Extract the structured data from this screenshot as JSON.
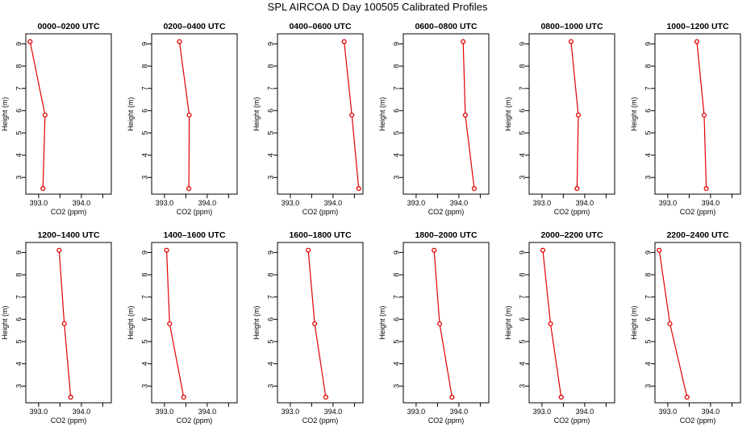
{
  "title": "SPL AIRCOA D  Day 100505  Calibrated Profiles",
  "chart_data": {
    "type": "line",
    "title": "SPL AIRCOA D  Day 100505  Calibrated Profiles",
    "xlabel": "CO2 (ppm)",
    "ylabel": "Height (m)",
    "xlim": [
      392.7,
      394.7
    ],
    "ylim": [
      2.25,
      9.45
    ],
    "x_ticks": [
      393.0,
      394.0
    ],
    "x_tick_labels": [
      "393.0",
      "394.0"
    ],
    "y_ticks": [
      3,
      4,
      5,
      6,
      7,
      8,
      9
    ],
    "y_tick_labels": [
      "3",
      "4",
      "5",
      "6",
      "7",
      "8",
      "9"
    ],
    "heights": [
      9.1,
      5.8,
      2.5
    ],
    "line_color": "#e00000",
    "grid": false,
    "panels": [
      {
        "title": "0000–0200 UTC",
        "co2": [
          392.8,
          393.15,
          393.1
        ]
      },
      {
        "title": "0200–0400 UTC",
        "co2": [
          393.35,
          393.58,
          393.57
        ]
      },
      {
        "title": "0400–0600 UTC",
        "co2": [
          394.26,
          394.44,
          394.6
        ]
      },
      {
        "title": "0600–0800 UTC",
        "co2": [
          394.1,
          394.15,
          394.36
        ]
      },
      {
        "title": "0800–1000 UTC",
        "co2": [
          393.68,
          393.85,
          393.82
        ]
      },
      {
        "title": "1000–1200 UTC",
        "co2": [
          393.68,
          393.85,
          393.9
        ]
      },
      {
        "title": "1200–1400 UTC",
        "co2": [
          393.48,
          393.6,
          393.75
        ]
      },
      {
        "title": "1400–1600 UTC",
        "co2": [
          393.05,
          393.12,
          393.45
        ]
      },
      {
        "title": "1600–1800 UTC",
        "co2": [
          393.42,
          393.57,
          393.83
        ]
      },
      {
        "title": "1800–2000 UTC",
        "co2": [
          393.42,
          393.55,
          393.84
        ]
      },
      {
        "title": "2000–2200 UTC",
        "co2": [
          393.02,
          393.2,
          393.45
        ]
      },
      {
        "title": "2200–2400 UTC",
        "co2": [
          392.8,
          393.05,
          393.45
        ]
      }
    ]
  }
}
